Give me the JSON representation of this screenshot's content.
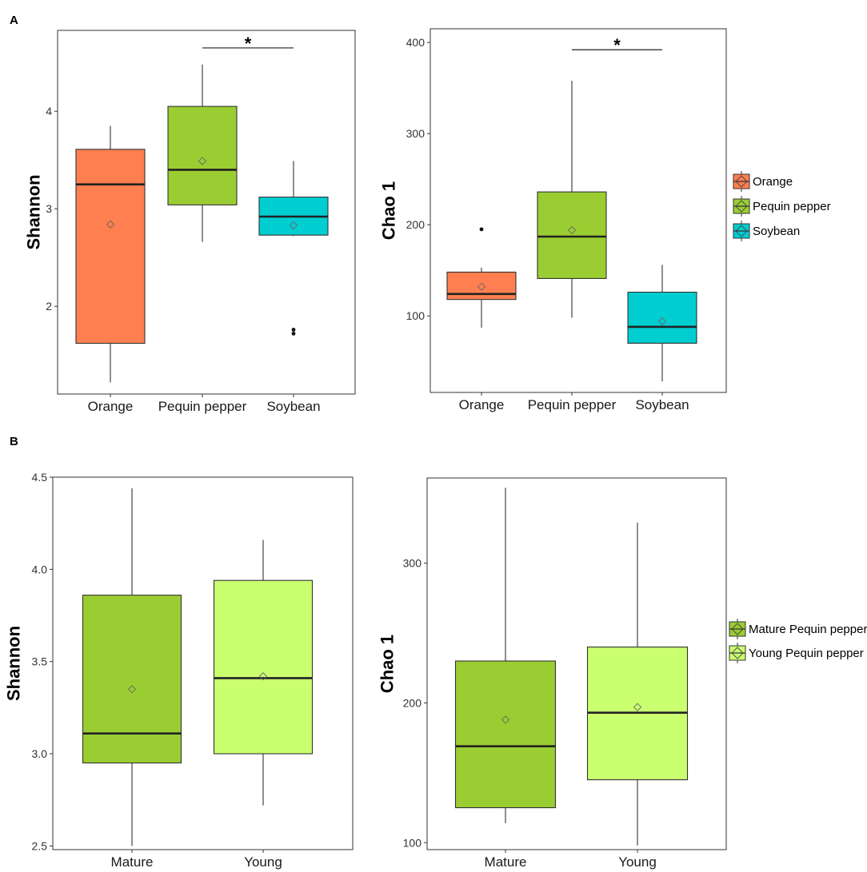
{
  "panel_labels": [
    "A",
    "B"
  ],
  "chart_data": [
    {
      "type": "box",
      "title": "",
      "xlabel": "",
      "ylabel": "Shannon",
      "ylim": [
        1.1,
        4.83
      ],
      "yticks": [
        2,
        3,
        4
      ],
      "ytick_labels": [
        "2",
        "3",
        "4"
      ],
      "categories": [
        "Orange",
        "Pequin pepper",
        "Soybean"
      ],
      "boxes": [
        {
          "category": "Orange",
          "color": "#FF7F50",
          "whisker_low": 1.22,
          "q1": 1.62,
          "median": 3.25,
          "q3": 3.61,
          "whisker_high": 3.85,
          "mean": 2.84,
          "outliers": []
        },
        {
          "category": "Pequin pepper",
          "color": "#9ACD32",
          "whisker_low": 2.66,
          "q1": 3.04,
          "median": 3.4,
          "q3": 4.05,
          "whisker_high": 4.48,
          "mean": 3.49,
          "outliers": []
        },
        {
          "category": "Soybean",
          "color": "#00CED1",
          "whisker_low": 2.72,
          "q1": 2.73,
          "median": 2.92,
          "q3": 3.12,
          "whisker_high": 3.49,
          "mean": 2.83,
          "outliers": [
            1.72,
            1.76
          ]
        }
      ],
      "significance": {
        "from": "Pequin pepper",
        "to": "Soybean",
        "label": "*",
        "y": 4.65
      }
    },
    {
      "type": "box",
      "title": "",
      "xlabel": "",
      "ylabel": "Chao 1",
      "ylim": [
        16,
        415
      ],
      "yticks": [
        100,
        200,
        300,
        400
      ],
      "ytick_labels": [
        "100",
        "200",
        "300",
        "400"
      ],
      "categories": [
        "Orange",
        "Pequin pepper",
        "Soybean"
      ],
      "boxes": [
        {
          "category": "Orange",
          "color": "#FF7F50",
          "whisker_low": 87,
          "q1": 118,
          "median": 124,
          "q3": 148,
          "whisker_high": 153,
          "mean": 132,
          "outliers": [
            195
          ]
        },
        {
          "category": "Pequin pepper",
          "color": "#9ACD32",
          "whisker_low": 98,
          "q1": 141,
          "median": 187,
          "q3": 236,
          "whisker_high": 358,
          "mean": 194,
          "outliers": []
        },
        {
          "category": "Soybean",
          "color": "#00CED1",
          "whisker_low": 28,
          "q1": 70,
          "median": 88,
          "q3": 126,
          "whisker_high": 156,
          "mean": 94,
          "outliers": []
        }
      ],
      "significance": {
        "from": "Pequin pepper",
        "to": "Soybean",
        "label": "*",
        "y": 392
      }
    },
    {
      "type": "box",
      "title": "",
      "xlabel": "",
      "ylabel": "Shannon",
      "ylim": [
        2.48,
        4.5
      ],
      "yticks": [
        2.5,
        3.0,
        3.5,
        4.0,
        4.5
      ],
      "ytick_labels": [
        "2.5",
        "3.0",
        "3.5",
        "4.0",
        "4.5"
      ],
      "categories": [
        "Mature",
        "Young"
      ],
      "boxes": [
        {
          "category": "Mature",
          "color": "#9ACD32",
          "whisker_low": 2.5,
          "q1": 2.95,
          "median": 3.11,
          "q3": 3.86,
          "whisker_high": 4.44,
          "mean": 3.35,
          "outliers": []
        },
        {
          "category": "Young",
          "color": "#CAFF70",
          "whisker_low": 2.72,
          "q1": 3.0,
          "median": 3.41,
          "q3": 3.94,
          "whisker_high": 4.16,
          "mean": 3.42,
          "outliers": []
        }
      ]
    },
    {
      "type": "box",
      "title": "",
      "xlabel": "",
      "ylabel": "Chao 1",
      "ylim": [
        95,
        361
      ],
      "yticks": [
        100,
        200,
        300
      ],
      "ytick_labels": [
        "100",
        "200",
        "300"
      ],
      "categories": [
        "Mature",
        "Young"
      ],
      "boxes": [
        {
          "category": "Mature",
          "color": "#9ACD32",
          "whisker_low": 114,
          "q1": 125,
          "median": 169,
          "q3": 230,
          "whisker_high": 354,
          "mean": 188,
          "outliers": []
        },
        {
          "category": "Young",
          "color": "#CAFF70",
          "whisker_low": 98,
          "q1": 145,
          "median": 193,
          "q3": 240,
          "whisker_high": 329,
          "mean": 197,
          "outliers": []
        }
      ]
    }
  ],
  "legend_top": {
    "entries": [
      {
        "label": "Orange",
        "color": "#FF7F50"
      },
      {
        "label": "Pequin pepper",
        "color": "#9ACD32"
      },
      {
        "label": "Soybean",
        "color": "#00CED1"
      }
    ]
  },
  "legend_bottom": {
    "entries": [
      {
        "label": "Mature Pequin pepper",
        "color": "#9ACD32"
      },
      {
        "label": "Young Pequin pepper",
        "color": "#CAFF70"
      }
    ]
  }
}
